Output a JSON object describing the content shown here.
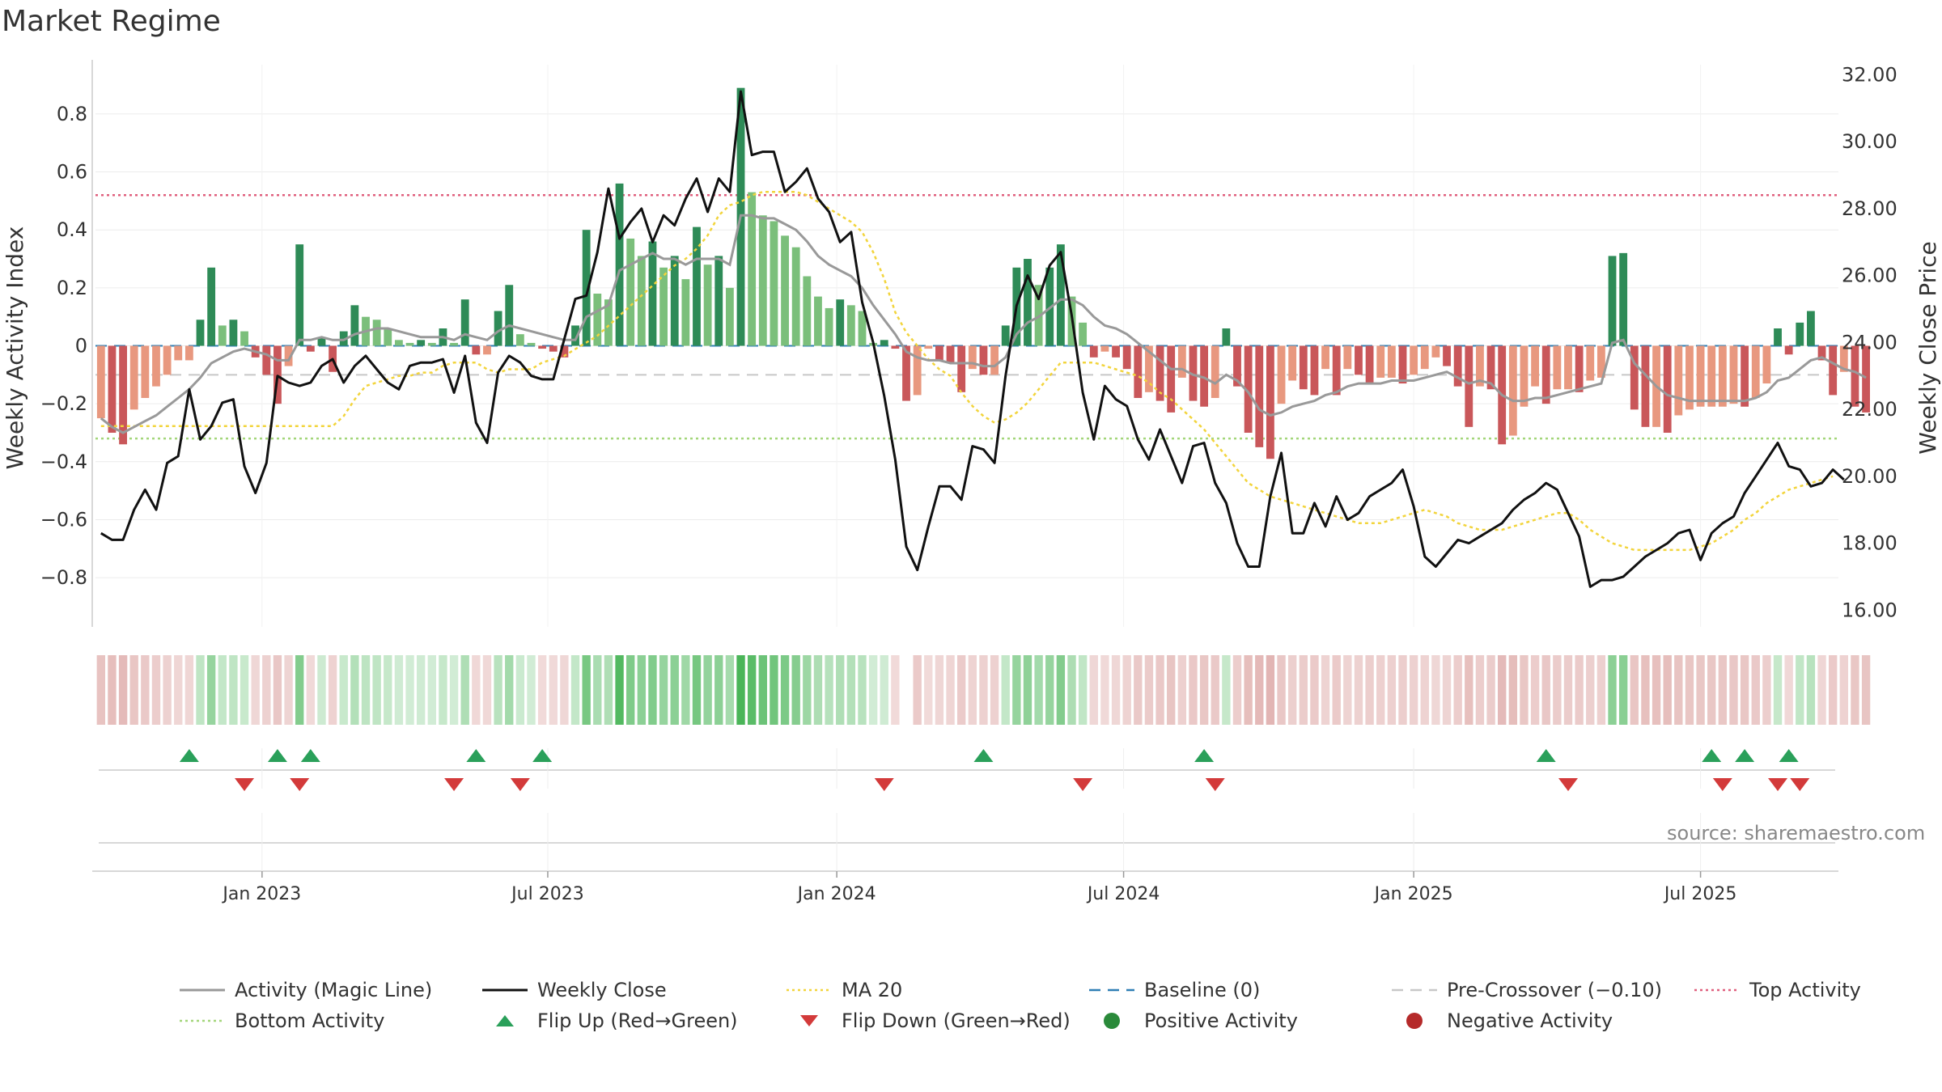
{
  "title": "Market Regime",
  "source": "source: sharemaestro.com",
  "colors": {
    "pos_dark": "#2e8b57",
    "pos_light": "#7bbf7b",
    "neg_dark": "#c9575a",
    "neg_light": "#e8987f",
    "magic": "#999999",
    "close": "#111111",
    "ma": "#f2d43c",
    "baseline": "#2f7fb5",
    "precross": "#c8c8c8",
    "top": "#e0607e",
    "bottom": "#a3d67a",
    "flip_up": "#2aa05a",
    "flip_down": "#d33a3a"
  },
  "chart_data": {
    "type": "bar",
    "title": "Market Regime",
    "ylabel": "Weekly Activity Index",
    "y2label": "Weekly Close Price",
    "ylim": [
      -0.97,
      0.97
    ],
    "y2lim": [
      15.5,
      32.3
    ],
    "yticks": [
      "0.8",
      "0.6",
      "0.4",
      "0.2",
      "0",
      "−0.2",
      "−0.4",
      "−0.6",
      "−0.8"
    ],
    "ytick_values": [
      0.8,
      0.6,
      0.4,
      0.2,
      0,
      -0.2,
      -0.4,
      -0.6,
      -0.8
    ],
    "y2ticks": [
      "32.00",
      "30.00",
      "28.00",
      "26.00",
      "24.00",
      "22.00",
      "20.00",
      "18.00",
      "16.00"
    ],
    "y2tick_values": [
      32,
      30,
      28,
      26,
      24,
      22,
      20,
      18,
      16
    ],
    "xticks": [
      "Jan 2023",
      "Jul 2023",
      "Jan 2024",
      "Jul 2024",
      "Jan 2025",
      "Jul 2025"
    ],
    "xtick_weeks": [
      15.1,
      41.0,
      67.2,
      93.2,
      119.5,
      145.5
    ],
    "num_weeks": 158,
    "activity": [
      -0.25,
      -0.3,
      -0.34,
      -0.22,
      -0.18,
      -0.14,
      -0.1,
      -0.05,
      -0.05,
      0.09,
      0.27,
      0.07,
      0.09,
      0.05,
      -0.04,
      -0.1,
      -0.2,
      -0.07,
      0.35,
      -0.02,
      0.03,
      -0.09,
      0.05,
      0.14,
      0.1,
      0.09,
      0.06,
      0.02,
      0.01,
      0.02,
      0.01,
      0.06,
      0.01,
      0.16,
      -0.03,
      -0.03,
      0.12,
      0.21,
      0.04,
      0.01,
      -0.01,
      -0.02,
      -0.04,
      0.07,
      0.4,
      0.18,
      0.16,
      0.56,
      0.37,
      0.31,
      0.36,
      0.27,
      0.31,
      0.23,
      0.41,
      0.28,
      0.31,
      0.2,
      0.89,
      0.53,
      0.45,
      0.43,
      0.38,
      0.34,
      0.24,
      0.17,
      0.13,
      0.16,
      0.14,
      0.12,
      0.01,
      0.02,
      -0.01,
      -0.19,
      -0.17,
      -0.01,
      -0.05,
      -0.06,
      -0.16,
      -0.08,
      -0.1,
      -0.1,
      0.07,
      0.27,
      0.3,
      0.21,
      0.27,
      0.35,
      0.17,
      0.08,
      -0.04,
      -0.02,
      -0.04,
      -0.08,
      -0.18,
      -0.16,
      -0.19,
      -0.23,
      -0.11,
      -0.19,
      -0.21,
      -0.18,
      0.06,
      -0.14,
      -0.3,
      -0.35,
      -0.39,
      -0.2,
      -0.12,
      -0.15,
      -0.17,
      -0.08,
      -0.17,
      -0.08,
      -0.1,
      -0.13,
      -0.11,
      -0.11,
      -0.13,
      -0.1,
      -0.08,
      -0.04,
      -0.07,
      -0.14,
      -0.28,
      -0.14,
      -0.15,
      -0.34,
      -0.31,
      -0.21,
      -0.14,
      -0.2,
      -0.15,
      -0.15,
      -0.16,
      -0.12,
      -0.11,
      0.31,
      0.32,
      -0.22,
      -0.28,
      -0.28,
      -0.3,
      -0.24,
      -0.22,
      -0.21,
      -0.21,
      -0.21,
      -0.2,
      -0.21,
      -0.18,
      -0.13,
      0.06,
      -0.03,
      0.08,
      0.12,
      -0.05,
      -0.17,
      -0.09,
      -0.21,
      -0.23
    ],
    "magic_line": [
      -0.25,
      -0.28,
      -0.3,
      -0.28,
      -0.26,
      -0.24,
      -0.21,
      -0.18,
      -0.15,
      -0.11,
      -0.06,
      -0.04,
      -0.02,
      -0.01,
      -0.02,
      -0.03,
      -0.05,
      -0.05,
      0.02,
      0.02,
      0.03,
      0.02,
      0.02,
      0.04,
      0.05,
      0.06,
      0.06,
      0.05,
      0.04,
      0.03,
      0.03,
      0.03,
      0.02,
      0.04,
      0.03,
      0.02,
      0.05,
      0.07,
      0.06,
      0.05,
      0.04,
      0.03,
      0.02,
      0.02,
      0.1,
      0.12,
      0.14,
      0.26,
      0.28,
      0.3,
      0.32,
      0.3,
      0.3,
      0.28,
      0.3,
      0.3,
      0.3,
      0.28,
      0.45,
      0.45,
      0.44,
      0.44,
      0.42,
      0.4,
      0.36,
      0.31,
      0.28,
      0.26,
      0.24,
      0.2,
      0.14,
      0.09,
      0.04,
      -0.02,
      -0.04,
      -0.05,
      -0.05,
      -0.06,
      -0.06,
      -0.06,
      -0.07,
      -0.07,
      -0.04,
      0.04,
      0.08,
      0.1,
      0.13,
      0.16,
      0.16,
      0.14,
      0.1,
      0.07,
      0.06,
      0.04,
      0.01,
      -0.02,
      -0.05,
      -0.08,
      -0.08,
      -0.1,
      -0.11,
      -0.13,
      -0.1,
      -0.12,
      -0.16,
      -0.22,
      -0.24,
      -0.23,
      -0.21,
      -0.2,
      -0.19,
      -0.17,
      -0.16,
      -0.14,
      -0.13,
      -0.13,
      -0.13,
      -0.12,
      -0.12,
      -0.12,
      -0.11,
      -0.1,
      -0.09,
      -0.11,
      -0.13,
      -0.12,
      -0.13,
      -0.17,
      -0.19,
      -0.19,
      -0.18,
      -0.18,
      -0.17,
      -0.16,
      -0.15,
      -0.14,
      -0.13,
      0.01,
      0.02,
      -0.06,
      -0.1,
      -0.14,
      -0.17,
      -0.18,
      -0.19,
      -0.19,
      -0.19,
      -0.19,
      -0.19,
      -0.19,
      -0.18,
      -0.16,
      -0.12,
      -0.11,
      -0.08,
      -0.05,
      -0.04,
      -0.06,
      -0.08,
      -0.09,
      -0.11
    ],
    "close": [
      18.3,
      18.1,
      18.1,
      19.0,
      19.6,
      19.0,
      20.4,
      20.6,
      22.6,
      21.1,
      21.5,
      22.2,
      22.3,
      20.3,
      19.5,
      20.4,
      23.0,
      22.8,
      22.7,
      22.8,
      23.3,
      23.5,
      22.8,
      23.3,
      23.6,
      23.2,
      22.8,
      22.6,
      23.3,
      23.4,
      23.4,
      23.5,
      22.5,
      23.6,
      21.6,
      21.0,
      23.1,
      23.6,
      23.4,
      23.0,
      22.9,
      22.9,
      24.1,
      25.3,
      25.4,
      26.7,
      28.6,
      27.1,
      27.6,
      28.0,
      27.0,
      27.8,
      27.5,
      28.3,
      28.9,
      27.9,
      28.9,
      28.5,
      31.5,
      29.6,
      29.7,
      29.7,
      28.5,
      28.8,
      29.2,
      28.3,
      27.9,
      27.0,
      27.3,
      25.2,
      24.0,
      22.4,
      20.5,
      17.9,
      17.2,
      18.5,
      19.7,
      19.7,
      19.3,
      20.9,
      20.8,
      20.4,
      23.0,
      25.1,
      26.0,
      25.3,
      26.3,
      26.7,
      24.8,
      22.5,
      21.1,
      22.7,
      22.3,
      22.1,
      21.1,
      20.5,
      21.4,
      20.6,
      19.8,
      20.9,
      21.0,
      19.8,
      19.2,
      18.0,
      17.3,
      17.3,
      19.4,
      20.7,
      18.3,
      18.3,
      19.2,
      18.5,
      19.4,
      18.7,
      18.9,
      19.4,
      19.6,
      19.8,
      20.2,
      19.1,
      17.6,
      17.3,
      17.7,
      18.1,
      18.0,
      18.2,
      18.4,
      18.6,
      19.0,
      19.3,
      19.5,
      19.8,
      19.6,
      18.9,
      18.2,
      16.7,
      16.9,
      16.9,
      17.0,
      17.3,
      17.6,
      17.8,
      18.0,
      18.3,
      18.4,
      17.5,
      18.3,
      18.6,
      18.8,
      19.5,
      20.0,
      20.5,
      21.0,
      20.3,
      20.2,
      19.7,
      19.8,
      20.2,
      19.9
    ],
    "ma20": [
      21.5,
      21.5,
      21.5,
      21.5,
      21.5,
      21.5,
      21.5,
      21.5,
      21.5,
      21.5,
      21.5,
      21.5,
      21.5,
      21.5,
      21.5,
      21.5,
      21.5,
      21.5,
      21.5,
      21.5,
      21.5,
      21.5,
      21.8,
      22.3,
      22.7,
      22.8,
      22.9,
      23.0,
      23.0,
      23.1,
      23.1,
      23.3,
      23.4,
      23.4,
      23.4,
      23.2,
      23.1,
      23.2,
      23.2,
      23.2,
      23.4,
      23.5,
      23.6,
      23.8,
      24.0,
      24.2,
      24.5,
      24.8,
      25.1,
      25.4,
      25.7,
      26.0,
      26.3,
      26.5,
      26.8,
      27.2,
      27.8,
      28.1,
      28.2,
      28.4,
      28.5,
      28.5,
      28.5,
      28.5,
      28.4,
      28.2,
      28.0,
      27.8,
      27.6,
      27.3,
      26.7,
      25.9,
      24.9,
      24.3,
      23.9,
      23.5,
      23.2,
      23.0,
      22.5,
      22.1,
      21.8,
      21.6,
      21.7,
      21.9,
      22.2,
      22.6,
      23.0,
      23.4,
      23.4,
      23.4,
      23.4,
      23.3,
      23.2,
      23.1,
      23.0,
      22.8,
      22.5,
      22.3,
      22.0,
      21.7,
      21.4,
      21.0,
      20.6,
      20.2,
      19.8,
      19.6,
      19.4,
      19.3,
      19.2,
      19.1,
      19.0,
      18.9,
      18.8,
      18.7,
      18.6,
      18.6,
      18.6,
      18.7,
      18.8,
      18.9,
      19.0,
      18.9,
      18.8,
      18.6,
      18.5,
      18.4,
      18.4,
      18.4,
      18.5,
      18.6,
      18.7,
      18.8,
      18.9,
      18.9,
      18.7,
      18.4,
      18.2,
      18.0,
      17.9,
      17.8,
      17.8,
      17.8,
      17.8,
      17.8,
      17.8,
      17.9,
      18.0,
      18.2,
      18.4,
      18.7,
      18.9,
      19.2,
      19.4,
      19.6,
      19.7,
      19.8,
      19.9,
      20.0
    ],
    "baseline": 0,
    "pre_crossover": -0.1,
    "top_activity": 0.52,
    "bottom_activity": -0.32,
    "flip_up_weeks": [
      8,
      16,
      19,
      34,
      40,
      80,
      100,
      131,
      146,
      149,
      153
    ],
    "flip_down_weeks": [
      13,
      18,
      32,
      38,
      71,
      89,
      101,
      133,
      147,
      152,
      154
    ],
    "strip_gap_weeks": [
      73
    ]
  },
  "legend": [
    {
      "label": "Activity (Magic Line)",
      "style": "solid",
      "color": "#999999"
    },
    {
      "label": "Weekly Close",
      "style": "solid",
      "color": "#111111"
    },
    {
      "label": "MA 20",
      "style": "dotted",
      "color": "#f2d43c"
    },
    {
      "label": "Baseline (0)",
      "style": "dashed",
      "color": "#2f7fb5"
    },
    {
      "label": "Pre-Crossover (−0.10)",
      "style": "dashed",
      "color": "#c8c8c8"
    },
    {
      "label": "Top Activity",
      "style": "dotted",
      "color": "#e0607e"
    },
    {
      "label": "Bottom Activity",
      "style": "dotted",
      "color": "#a3d67a"
    },
    {
      "label": "Flip Up (Red→Green)",
      "style": "triangle-up",
      "color": "#2aa05a"
    },
    {
      "label": "Flip Down (Green→Red)",
      "style": "triangle-down",
      "color": "#d33a3a"
    },
    {
      "label": "Positive Activity",
      "style": "dot",
      "color": "#2a8a3a"
    },
    {
      "label": "Negative Activity",
      "style": "dot",
      "color": "#b52a2a"
    }
  ]
}
